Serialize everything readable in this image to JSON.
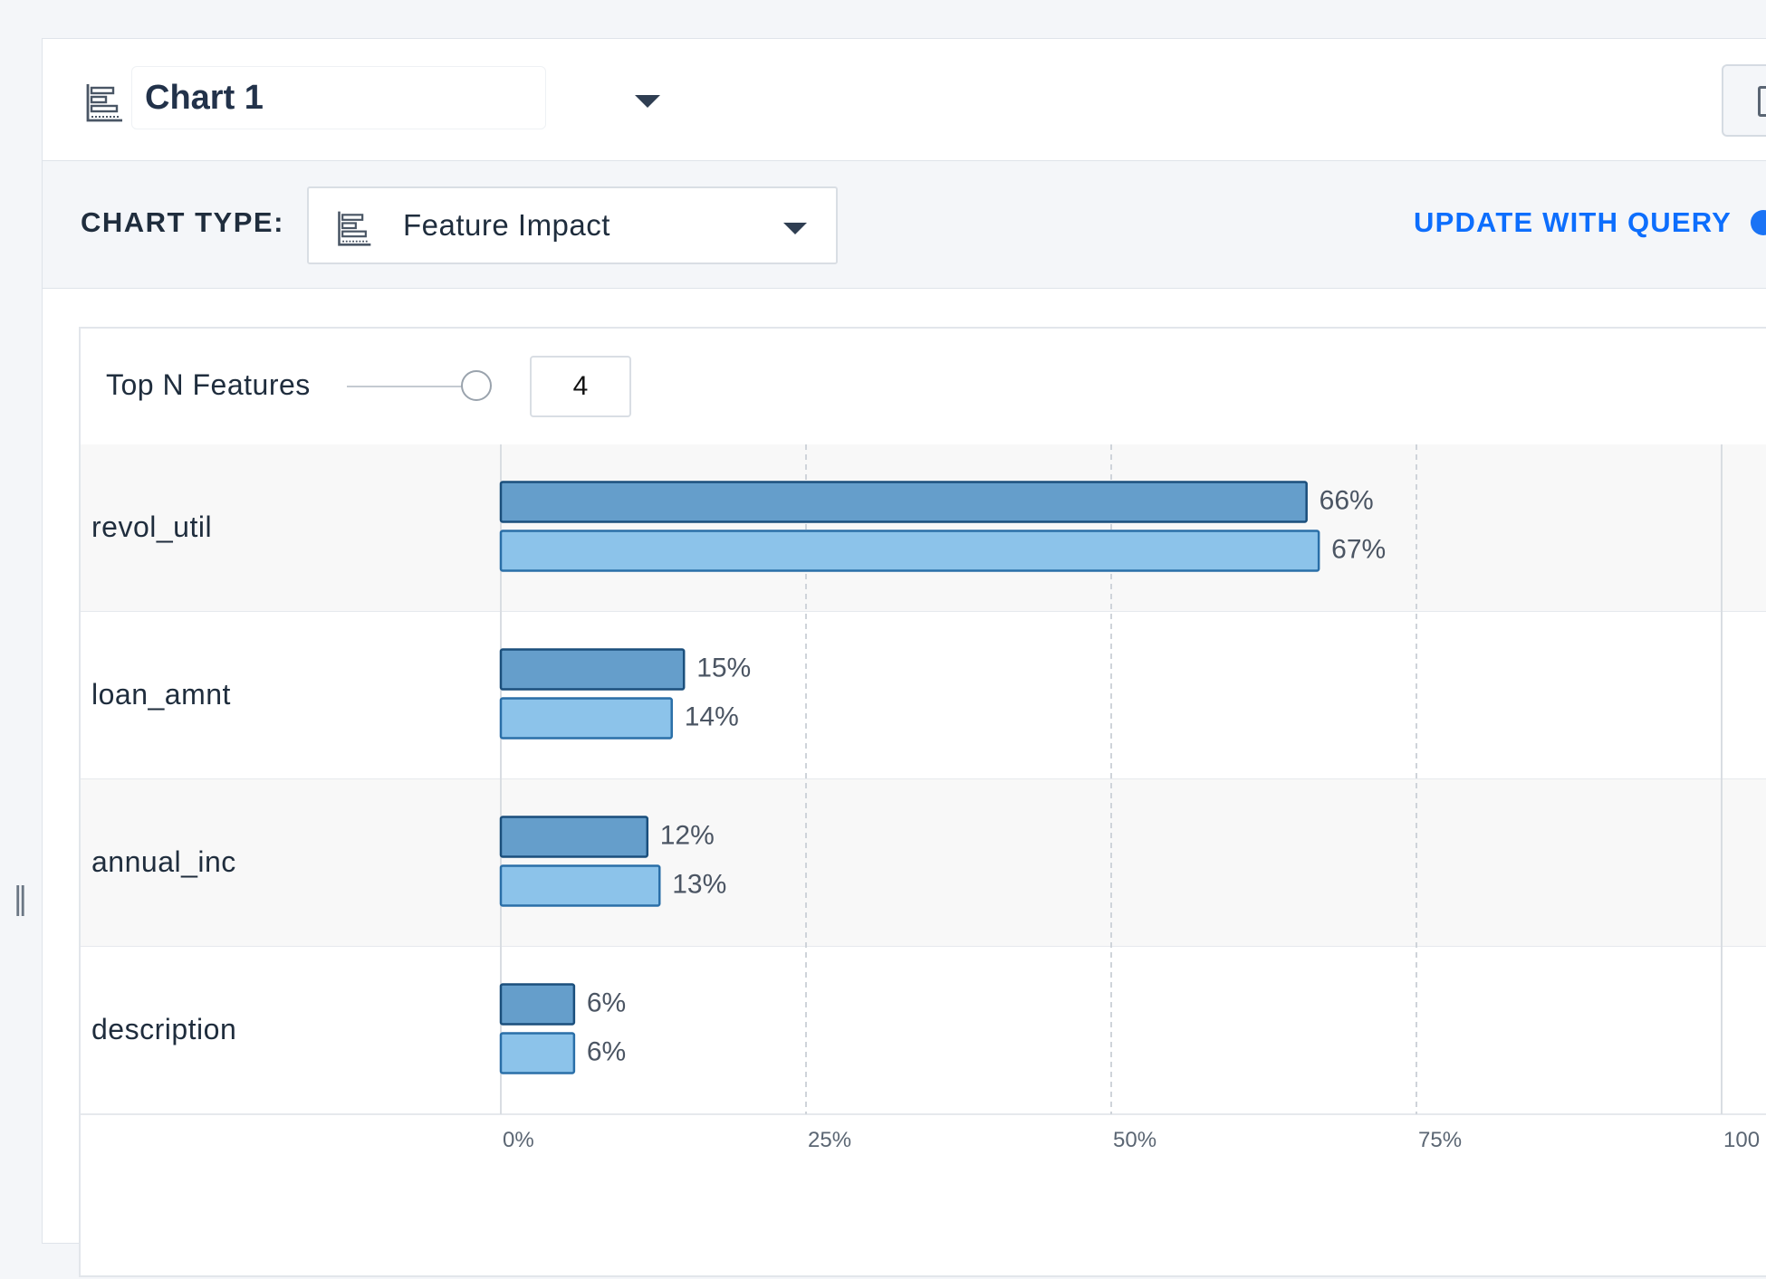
{
  "header": {
    "chart_name": "Chart 1",
    "chart_name_icon": "feature-impact-icon",
    "corner_icon": "chart-icon"
  },
  "chart_type_bar": {
    "label": "CHART TYPE:",
    "selected": "Feature Impact",
    "selected_icon": "feature-impact-icon",
    "update_link": "UPDATE WITH QUERY",
    "accent_color": "#0d6efd"
  },
  "controls": {
    "top_n_label": "Top N Features",
    "top_n_value": "4",
    "slider_fraction": 1.0
  },
  "splitter_glyph": "‖",
  "chart_data": {
    "type": "bar",
    "orientation": "horizontal",
    "categories": [
      "revol_util",
      "loan_amnt",
      "annual_inc",
      "description"
    ],
    "series": [
      {
        "values": [
          66,
          15,
          12,
          6
        ],
        "color": "#659ecb",
        "border": "#1b4f7c"
      },
      {
        "values": [
          67,
          14,
          13,
          6
        ],
        "color": "#8cc3ea",
        "border": "#2a6fa8"
      }
    ],
    "xlim": [
      0,
      100
    ],
    "x_ticks": [
      0,
      25,
      50,
      75,
      100
    ],
    "x_tick_labels": [
      "0%",
      "25%",
      "50%",
      "75%",
      "100"
    ],
    "value_suffix": "%",
    "grid": "vertical dashed"
  }
}
